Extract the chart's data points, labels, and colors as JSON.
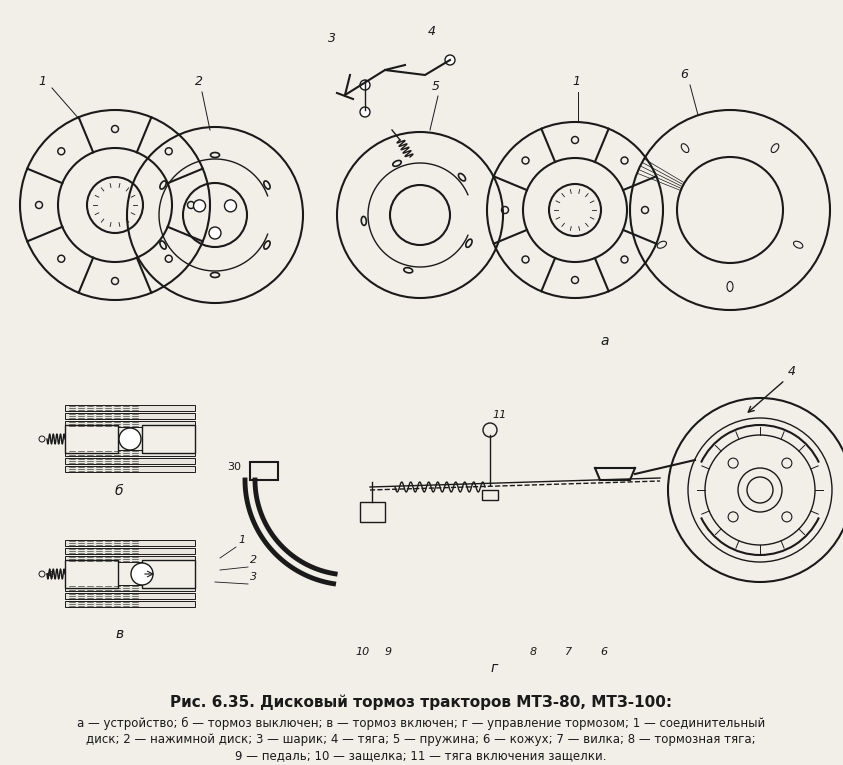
{
  "title": "Рис. 6.35. Дисковый тормоз тракторов МТЗ-80, МТЗ-100:",
  "caption_line1": "а — устройство; б — тормоз выключен; в — тормоз включен; г — управление тормозом; 1 — соединительный",
  "caption_line2": "диск; 2 — нажимной диск; 3 — шарик; 4 — тяга; 5 — пружина; 6 — кожух; 7 — вилка; 8 — тормозная тяга;",
  "caption_line3": "9 — педаль; 10 — защелка; 11 — тяга включения защелки.",
  "bg_color": "#f2efe8",
  "fig_width": 8.43,
  "fig_height": 7.65,
  "dpi": 100
}
